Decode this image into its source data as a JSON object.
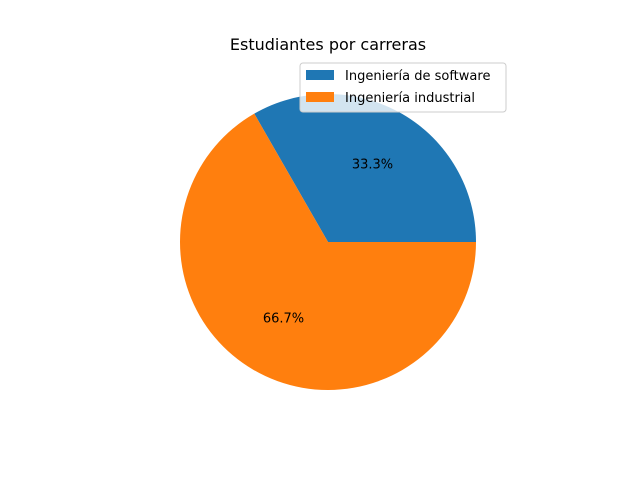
{
  "chart_data": {
    "type": "pie",
    "title": "Estudiantes por carreras",
    "slices": [
      {
        "label": "Ingeniería de software",
        "percent": 33.3,
        "pct_label": "33.3%",
        "color": "#1f77b4"
      },
      {
        "label": "Ingeniería industrial",
        "percent": 66.7,
        "pct_label": "66.7%",
        "color": "#ff7f0e"
      }
    ],
    "start_angle_deg": 0,
    "direction": "counterclockwise",
    "legend_position": "top-right"
  }
}
